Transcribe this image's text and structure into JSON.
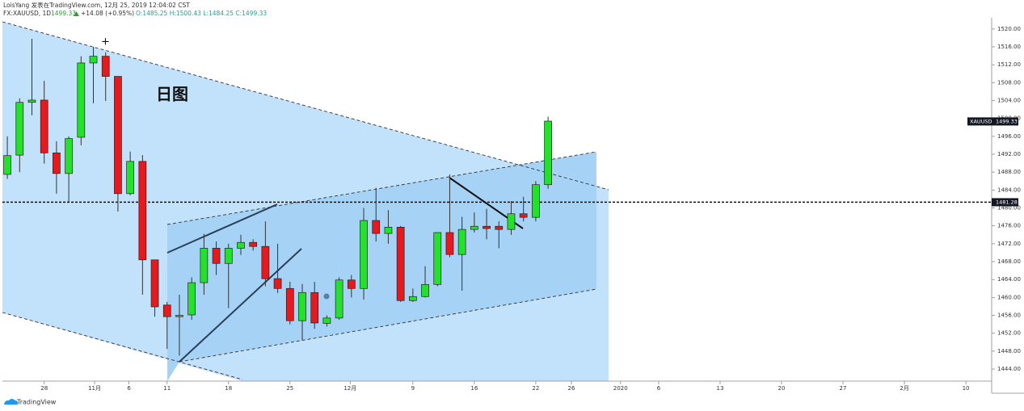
{
  "header": {
    "line1": "LoisYang 发表在TradingView.com, 12月 25, 2019 12:04:02 CST",
    "symbol": "FX:XAUUSD, 1D",
    "last": "1499.33",
    "change": "+14.08 (+0.95%)",
    "ohlc": "O:1485.25 H:1500.43 L:1484.25 C:1499.33"
  },
  "footer": "TradingView",
  "chart_data": {
    "type": "candlestick",
    "annotation": "日图",
    "x": [
      0,
      1,
      2,
      3,
      4,
      5,
      6,
      7,
      8,
      9,
      10,
      11,
      12,
      13,
      14,
      15,
      16,
      17,
      18,
      19,
      20,
      21,
      22,
      23,
      24,
      25,
      26,
      27,
      28,
      29,
      30,
      31,
      32,
      33,
      34,
      35,
      36,
      37,
      38,
      39,
      40,
      41,
      42,
      43,
      44
    ],
    "open": [
      1487.5,
      1491.8,
      1503.6,
      1504.1,
      1492.3,
      1487.7,
      1495.8,
      1512.4,
      1513.9,
      1509.4,
      1483.2,
      1490.4,
      1468.4,
      1458.3,
      1455.7,
      1456.1,
      1463.3,
      1471,
      1467.6,
      1471,
      1472.3,
      1471.4,
      1464.2,
      1462,
      1454.8,
      1461.1,
      1454.2,
      1455.4,
      1463.9,
      1462,
      1477.2,
      1474.3,
      1475.7,
      1459.3,
      1460.2,
      1462.9,
      1474.5,
      1469.6,
      1475.2,
      1475.9,
      1475.9,
      1475.2,
      1478.7,
      1477.9,
      1485.2
    ],
    "high": [
      1496,
      1504.5,
      1517.8,
      1508.4,
      1494.9,
      1496,
      1513.9,
      1516,
      1514.8,
      1509.4,
      1492.6,
      1491.8,
      1468.4,
      1459,
      1460.6,
      1464.5,
      1474.2,
      1472.5,
      1472,
      1474,
      1473,
      1477,
      1472,
      1463.5,
      1463,
      1463.5,
      1456,
      1464.5,
      1465,
      1480,
      1484.5,
      1479.5,
      1476,
      1462,
      1467,
      1474.6,
      1487.5,
      1478,
      1479,
      1479.8,
      1477,
      1481.5,
      1482.5,
      1486,
      1500.4
    ],
    "low": [
      1486.5,
      1488,
      1500.7,
      1489.9,
      1483.2,
      1481.4,
      1494,
      1503.4,
      1503.9,
      1479.2,
      1482.8,
      1460.6,
      1455.7,
      1448.5,
      1447,
      1455,
      1460.6,
      1465,
      1457.6,
      1469.5,
      1470.5,
      1462.5,
      1461,
      1454,
      1450.5,
      1453,
      1453.5,
      1455,
      1460,
      1459.5,
      1472.5,
      1472,
      1459,
      1459,
      1460,
      1462.5,
      1469,
      1461.5,
      1474.5,
      1473,
      1471,
      1474,
      1477,
      1477,
      1484.3
    ],
    "close": [
      1491.7,
      1503.6,
      1504.1,
      1492.3,
      1487.7,
      1495.5,
      1512.4,
      1513.9,
      1509.4,
      1483.2,
      1490.4,
      1468.4,
      1457.9,
      1455.7,
      1456,
      1463.3,
      1471,
      1467.6,
      1471,
      1472.3,
      1471.4,
      1464.2,
      1462,
      1454.8,
      1461.1,
      1454.3,
      1455.4,
      1463.9,
      1462,
      1477.2,
      1474.3,
      1475.7,
      1459.3,
      1460.2,
      1462.9,
      1474.5,
      1469.6,
      1475.2,
      1475.9,
      1475.4,
      1475.2,
      1478.7,
      1477.9,
      1485.2,
      1499.4
    ],
    "up_color": "#22e32a",
    "down_color": "#e8191c",
    "xlim": [
      -0.4,
      80.1
    ],
    "xticks": [
      {
        "value": 3,
        "label": "28"
      },
      {
        "value": 7.1,
        "label": "11月"
      },
      {
        "value": 9.9,
        "label": "6"
      },
      {
        "value": 13,
        "label": "11"
      },
      {
        "value": 18,
        "label": "18"
      },
      {
        "value": 23,
        "label": "25"
      },
      {
        "value": 27.9,
        "label": "12月"
      },
      {
        "value": 33,
        "label": "9"
      },
      {
        "value": 38,
        "label": "16"
      },
      {
        "value": 43,
        "label": "22"
      },
      {
        "value": 45.9,
        "label": "26"
      },
      {
        "value": 49.9,
        "label": "2020"
      },
      {
        "value": 53,
        "label": "6"
      },
      {
        "value": 58,
        "label": "13"
      },
      {
        "value": 63,
        "label": "20"
      },
      {
        "value": 68,
        "label": "27"
      },
      {
        "value": 73,
        "label": "2月"
      },
      {
        "value": 78,
        "label": "10"
      }
    ],
    "ylim": [
      1441.3,
      1522.5
    ],
    "yticks": [
      {
        "value": 1444,
        "label": "1444.00"
      },
      {
        "value": 1448,
        "label": "1448.00"
      },
      {
        "value": 1452,
        "label": "1452.00"
      },
      {
        "value": 1456,
        "label": "1456.00"
      },
      {
        "value": 1460,
        "label": "1460.00"
      },
      {
        "value": 1464,
        "label": "1464.00"
      },
      {
        "value": 1468,
        "label": "1468.00"
      },
      {
        "value": 1472,
        "label": "1472.00"
      },
      {
        "value": 1476,
        "label": "1476.00"
      },
      {
        "value": 1480,
        "label": "1480.00"
      },
      {
        "value": 1484,
        "label": "1484.00"
      },
      {
        "value": 1488,
        "label": "1488.00"
      },
      {
        "value": 1492,
        "label": "1492.00"
      },
      {
        "value": 1496,
        "label": "1496.00"
      },
      {
        "value": 1500,
        "label": "1500.00"
      },
      {
        "value": 1504,
        "label": "1504.00"
      },
      {
        "value": 1508,
        "label": "1508.00"
      },
      {
        "value": 1512,
        "label": "1512.00"
      },
      {
        "value": 1516,
        "label": "1516.00"
      },
      {
        "value": 1520,
        "label": "1520.00"
      }
    ],
    "price_label": {
      "name": "XAUUSD",
      "value": 1499.33
    },
    "hline": 1481.28
  }
}
